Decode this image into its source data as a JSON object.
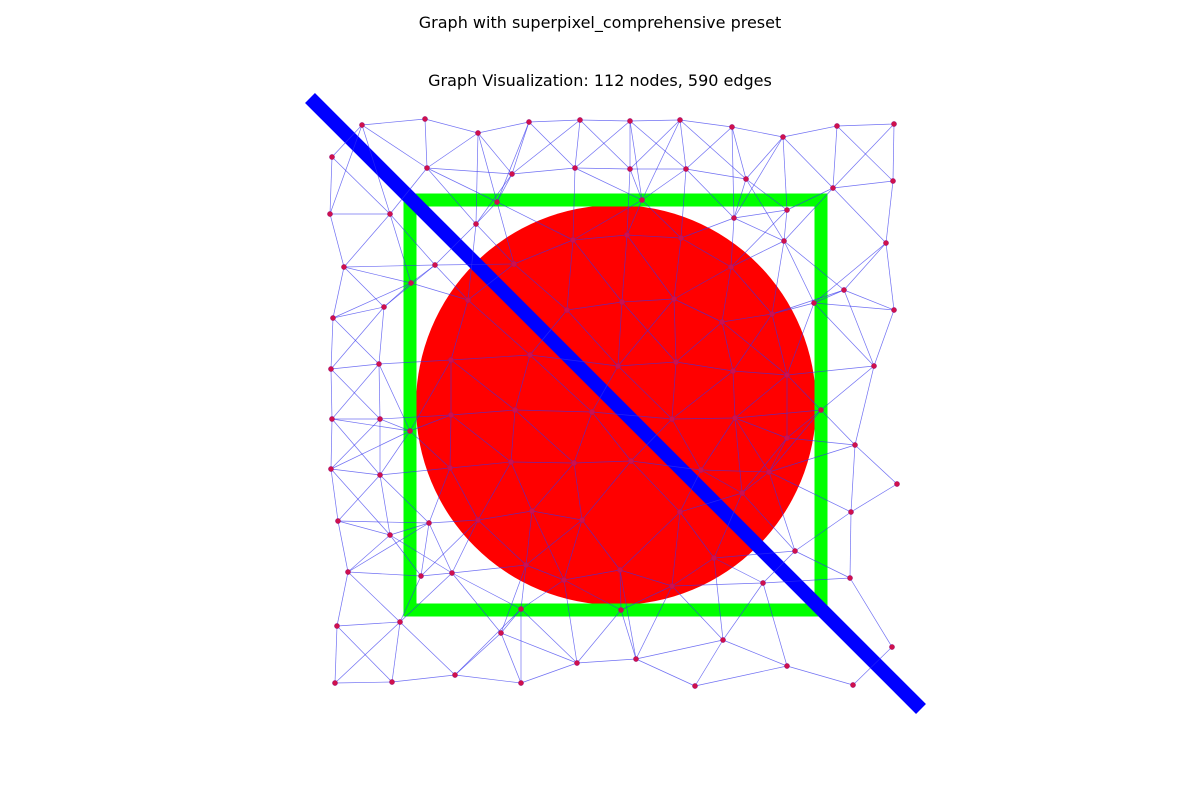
{
  "figure": {
    "suptitle": "Graph with superpixel_comprehensive preset",
    "subtitle": "Graph Visualization: 112 nodes, 590 edges"
  },
  "colors": {
    "background": "#ffffff",
    "circle": "#ff0000",
    "square": "#00ff00",
    "diagonal": "#0000ff",
    "edge": "#3333ee",
    "node": "#d0104c"
  },
  "graph": {
    "node_count": 112,
    "edge_count": 590
  }
}
